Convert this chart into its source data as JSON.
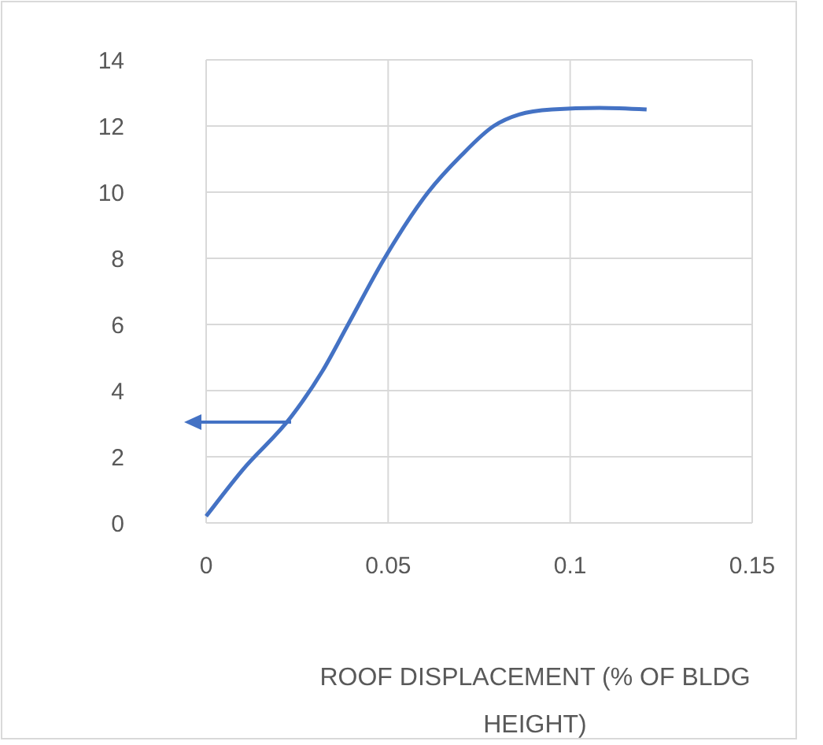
{
  "chart_data": {
    "type": "line",
    "xlabel": "ROOF DISPLACEMENT (% OF BLDG HEIGHT)",
    "series": [
      {
        "color": "#4472c4",
        "x": [
          0,
          0.01,
          0.0233,
          0.032,
          0.039,
          0.049,
          0.061,
          0.07,
          0.079,
          0.086,
          0.095,
          0.108,
          0.121
        ],
        "values": [
          0.2,
          1.6,
          3.2,
          4.6,
          6,
          8,
          10,
          11.1,
          12,
          12.35,
          12.5,
          12.55,
          12.5
        ]
      }
    ],
    "xlim": [
      0,
      0.15
    ],
    "xticks": [
      0,
      0.05,
      0.1,
      0.15
    ],
    "ylim": [
      0,
      14
    ],
    "yticks": [
      0,
      2,
      4,
      6,
      8,
      10,
      12,
      14
    ],
    "grid": true,
    "line_style": "solid",
    "marker": "none"
  }
}
